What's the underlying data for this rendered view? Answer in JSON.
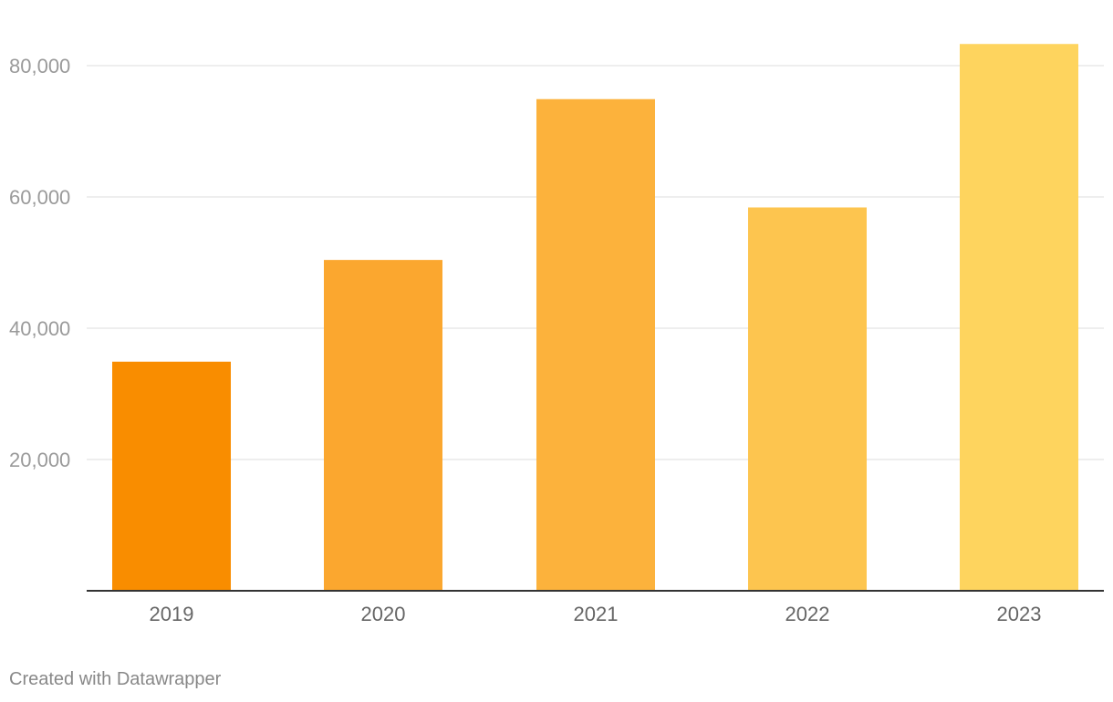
{
  "chart_data": {
    "type": "bar",
    "categories": [
      "2019",
      "2020",
      "2021",
      "2022",
      "2023"
    ],
    "values": [
      34900,
      50400,
      74900,
      58400,
      83300
    ],
    "bar_colors": [
      "#f98d00",
      "#fba72f",
      "#fcb23c",
      "#fdc54f",
      "#fed45e"
    ],
    "title": "",
    "xlabel": "",
    "ylabel": "",
    "ylim": [
      0,
      80000
    ],
    "y_ticks": [
      20000,
      40000,
      60000,
      80000
    ],
    "y_tick_labels": [
      "20,000",
      "40,000",
      "60,000",
      "80,000"
    ],
    "grid": true,
    "legend": "none"
  },
  "footer": {
    "credit": "Created with Datawrapper"
  },
  "colors": {
    "gridline": "#e3e3e3",
    "baseline": "#333333",
    "y_tick_text": "#9a9a9a",
    "x_tick_text": "#666666",
    "credit_text": "#888888"
  }
}
